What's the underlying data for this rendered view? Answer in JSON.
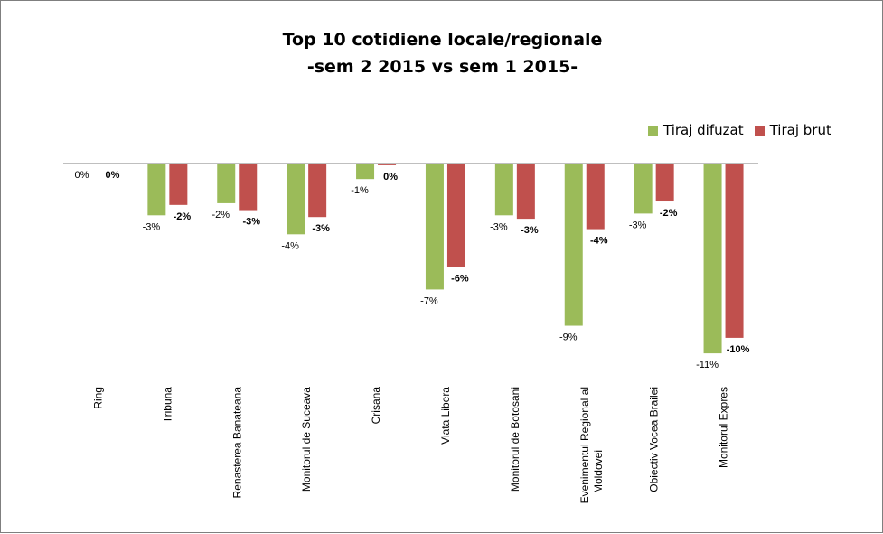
{
  "chart_data": {
    "type": "bar",
    "title": "Top 10 cotidiene locale/regionale",
    "subtitle": "-sem 2 2015 vs sem 1 2015-",
    "categories": [
      "Ring",
      "Tribuna",
      "Renasterea Banateana",
      "Monitorul de Suceava",
      "Crisana",
      "Viata Libera",
      "Monitorul de Botosani",
      "Evenimentul Regional al Moldovei",
      "Obiectiv Vocea Brailei",
      "Monitorul Expres"
    ],
    "series": [
      {
        "name": "Tiraj difuzat",
        "color": "#9bbb59",
        "values": [
          0.0,
          -3.0,
          -2.3,
          -4.1,
          -0.9,
          -7.3,
          -3.0,
          -9.4,
          -2.9,
          -11.0
        ],
        "labels": [
          "0%",
          "-3%",
          "-2%",
          "-4%",
          "-1%",
          "-7%",
          "-3%",
          "-9%",
          "-3%",
          "-11%"
        ]
      },
      {
        "name": "Tiraj brut",
        "color": "#c0504d",
        "values": [
          0.0,
          -2.4,
          -2.7,
          -3.1,
          -0.1,
          -6.0,
          -3.2,
          -3.8,
          -2.2,
          -10.1
        ],
        "labels": [
          "0%",
          "-2%",
          "-3%",
          "-3%",
          "0%",
          "-6%",
          "-3%",
          "-4%",
          "-2%",
          "-10%"
        ]
      }
    ],
    "ylim": [
      -11,
      0
    ],
    "grid": false,
    "legend_position": "top-right"
  }
}
